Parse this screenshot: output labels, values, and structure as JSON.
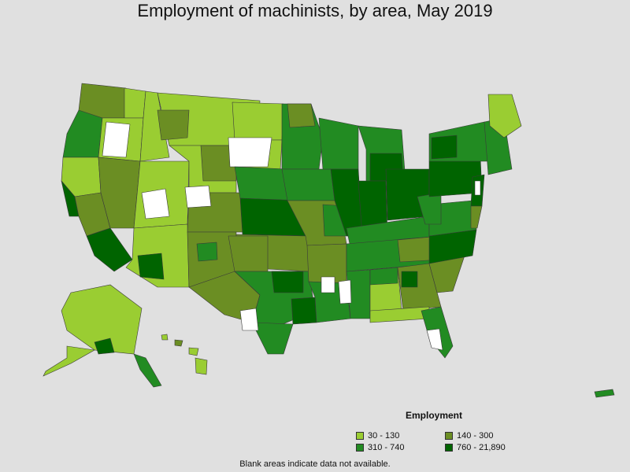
{
  "title": "Employment of machinists, by area, May 2019",
  "legend": {
    "title": "Employment",
    "items": [
      {
        "label": "30 - 130",
        "color": "#9acd32"
      },
      {
        "label": "140 - 300",
        "color": "#6b8e23"
      },
      {
        "label": "310 - 740",
        "color": "#228b22"
      },
      {
        "label": "760 - 21,890",
        "color": "#006400"
      }
    ]
  },
  "no_data_color": "#ffffff",
  "footnote": "Blank areas indicate data not available."
}
